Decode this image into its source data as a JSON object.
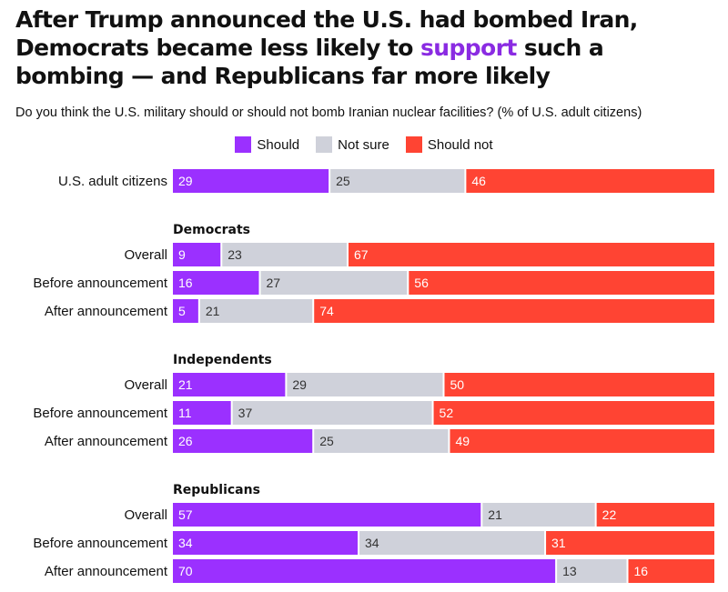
{
  "title": {
    "before": "After Trump announced the U.S. had bombed Iran, Democrats became less likely to ",
    "highlight": "support",
    "after": " such a bombing — and Republicans far more likely"
  },
  "subtitle": "Do you think the U.S. military should or should not bomb Iranian nuclear facilities? (% of U.S. adult citizens)",
  "colors": {
    "should": "#9b30ff",
    "not_sure": "#cfd1da",
    "should_not": "#ff4433",
    "highlight": "#8a2be2"
  },
  "chart_data": {
    "type": "bar",
    "orientation": "horizontal-stacked",
    "legend": [
      "Should",
      "Not sure",
      "Should not"
    ],
    "legend_placement": "top-center",
    "xlim": [
      0,
      100
    ],
    "rows": [
      {
        "group": "",
        "label": "U.S. adult citizens",
        "values": [
          29,
          25,
          46
        ]
      },
      {
        "group": "Democrats",
        "label": "Overall",
        "values": [
          9,
          23,
          67
        ]
      },
      {
        "group": "Democrats",
        "label": "Before announcement",
        "values": [
          16,
          27,
          56
        ]
      },
      {
        "group": "Democrats",
        "label": "After announcement",
        "values": [
          5,
          21,
          74
        ]
      },
      {
        "group": "Independents",
        "label": "Overall",
        "values": [
          21,
          29,
          50
        ]
      },
      {
        "group": "Independents",
        "label": "Before announcement",
        "values": [
          11,
          37,
          52
        ]
      },
      {
        "group": "Independents",
        "label": "After announcement",
        "values": [
          26,
          25,
          49
        ]
      },
      {
        "group": "Republicans",
        "label": "Overall",
        "values": [
          57,
          21,
          22
        ]
      },
      {
        "group": "Republicans",
        "label": "Before announcement",
        "values": [
          34,
          34,
          31
        ]
      },
      {
        "group": "Republicans",
        "label": "After announcement",
        "values": [
          70,
          13,
          16
        ]
      }
    ],
    "groups": [
      "Democrats",
      "Independents",
      "Republicans"
    ]
  }
}
